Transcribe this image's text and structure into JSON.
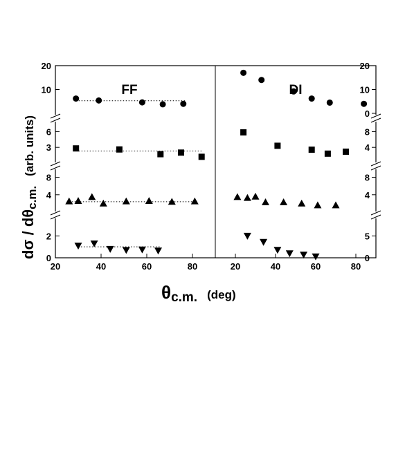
{
  "chart_data": {
    "type": "scatter",
    "title": "",
    "xlabel": "θc.m.",
    "xlabel_main": "θ",
    "xlabel_sub": "c.m.",
    "xlabel_unit": "(deg)",
    "ylabel_main": "dσ / dθ",
    "ylabel_sub": "c.m.",
    "ylabel_unit": "(arb. units)",
    "grid": false,
    "legend": "none",
    "panels": [
      {
        "name": "FF",
        "xlim": [
          20,
          90
        ],
        "x_ticks": [
          20,
          40,
          60,
          80
        ],
        "x_tick_labels": [
          "20",
          "40",
          "60",
          "80"
        ],
        "rows": [
          {
            "marker": "circle",
            "ylim": [
              0,
              20
            ],
            "y_ticks": [
              10,
              20
            ],
            "y_tick_labels": [
              "10",
              "20"
            ],
            "points": [
              [
                29,
                6.2
              ],
              [
                39,
                5.4
              ],
              [
                58,
                4.6
              ],
              [
                67,
                3.8
              ],
              [
                76,
                4.0
              ]
            ],
            "fit": {
              "x": [
                29,
                77
              ],
              "y": 5.3
            }
          },
          {
            "marker": "square",
            "ylim": [
              0,
              7.5
            ],
            "y_ticks": [
              3,
              6
            ],
            "y_tick_labels": [
              "3",
              "6"
            ],
            "points": [
              [
                29,
                2.8
              ],
              [
                48,
                2.6
              ],
              [
                66,
                1.7
              ],
              [
                75,
                2.0
              ],
              [
                84,
                1.2
              ]
            ],
            "fit": {
              "x": [
                29,
                84
              ],
              "y": 2.3
            }
          },
          {
            "marker": "triangle-up",
            "ylim": [
              0,
              10
            ],
            "y_ticks": [
              4,
              8
            ],
            "y_tick_labels": [
              "4",
              "8"
            ],
            "points": [
              [
                26,
                2.5
              ],
              [
                30,
                2.6
              ],
              [
                36,
                3.5
              ],
              [
                41,
                2.0
              ],
              [
                51,
                2.5
              ],
              [
                61,
                2.6
              ],
              [
                71,
                2.4
              ],
              [
                81,
                2.5
              ]
            ],
            "fit": {
              "x": [
                26,
                82
              ],
              "y": 2.4
            }
          },
          {
            "marker": "triangle-down",
            "ylim": [
              0,
              3.6
            ],
            "y_ticks": [
              0,
              2
            ],
            "y_tick_labels": [
              "0",
              "2"
            ],
            "points": [
              [
                30,
                1.1
              ],
              [
                37,
                1.3
              ],
              [
                44,
                0.8
              ],
              [
                51,
                0.7
              ],
              [
                58,
                0.75
              ],
              [
                65,
                0.65
              ]
            ],
            "fit": {
              "x": [
                30,
                66
              ],
              "y": 1.0
            }
          }
        ]
      },
      {
        "name": "DI",
        "xlim": [
          10,
          90
        ],
        "x_ticks": [
          20,
          40,
          60,
          80
        ],
        "x_tick_labels": [
          "20",
          "40",
          "60",
          "80"
        ],
        "rows": [
          {
            "marker": "circle",
            "ylim": [
              0,
              20
            ],
            "y_ticks": [
              0,
              10,
              20
            ],
            "y_tick_labels": [
              "0",
              "10",
              "20"
            ],
            "points": [
              [
                24,
                17
              ],
              [
                33,
                14
              ],
              [
                49,
                9.2
              ],
              [
                58,
                6.2
              ],
              [
                67,
                4.5
              ],
              [
                84,
                4.0
              ]
            ],
            "fit": null
          },
          {
            "marker": "square",
            "ylim": [
              0,
              10
            ],
            "y_ticks": [
              4,
              8
            ],
            "y_tick_labels": [
              "4",
              "8"
            ],
            "points": [
              [
                24,
                7.8
              ],
              [
                41,
                4.4
              ],
              [
                58,
                3.4
              ],
              [
                66,
                2.4
              ],
              [
                75,
                2.9
              ]
            ],
            "fit": null
          },
          {
            "marker": "triangle-up",
            "ylim": [
              0,
              10
            ],
            "y_ticks": [
              4,
              8
            ],
            "y_tick_labels": [
              "4",
              "8"
            ],
            "points": [
              [
                21,
                3.5
              ],
              [
                26,
                3.3
              ],
              [
                30,
                3.6
              ],
              [
                35,
                2.3
              ],
              [
                44,
                2.3
              ],
              [
                53,
                2.0
              ],
              [
                61,
                1.6
              ],
              [
                70,
                1.6
              ]
            ],
            "fit": null
          },
          {
            "marker": "triangle-down",
            "ylim": [
              0,
              9
            ],
            "y_ticks": [
              0,
              5
            ],
            "y_tick_labels": [
              "0",
              "5"
            ],
            "points": [
              [
                26,
                5.0
              ],
              [
                34,
                3.6
              ],
              [
                41,
                1.8
              ],
              [
                47,
                1.0
              ],
              [
                54,
                0.7
              ],
              [
                60,
                0.3
              ]
            ],
            "fit": null
          }
        ]
      }
    ]
  }
}
